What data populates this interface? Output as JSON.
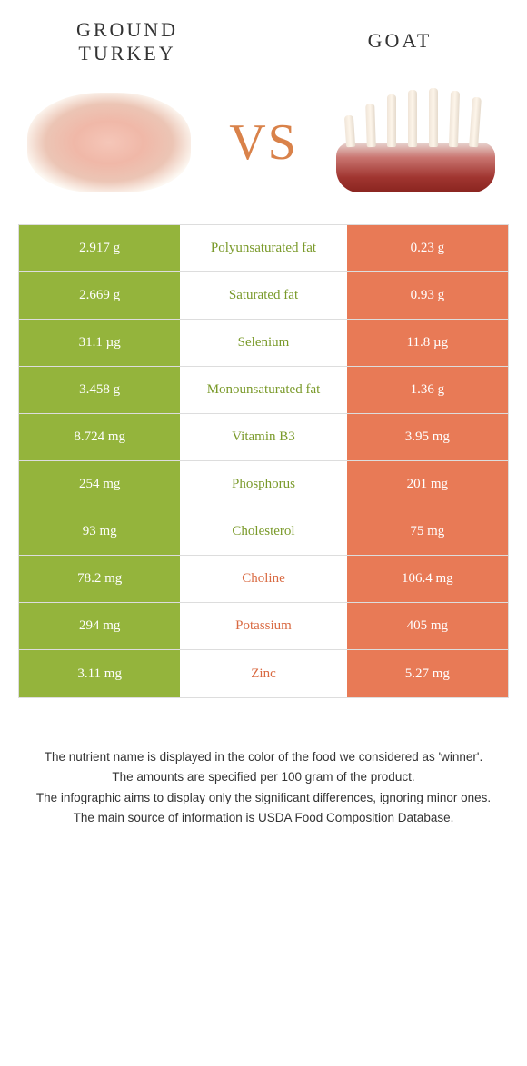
{
  "colors": {
    "left": "#94b43c",
    "right": "#e87a56",
    "left_text": "#7a9a2a",
    "right_text": "#d96a42"
  },
  "food_left": "GROUND TURKEY",
  "food_right": "GOAT",
  "vs": "VS",
  "rows": [
    {
      "left": "2.917 g",
      "label": "Polyunsaturated fat",
      "right": "0.23 g",
      "winner": "left"
    },
    {
      "left": "2.669 g",
      "label": "Saturated fat",
      "right": "0.93 g",
      "winner": "left"
    },
    {
      "left": "31.1 µg",
      "label": "Selenium",
      "right": "11.8 µg",
      "winner": "left"
    },
    {
      "left": "3.458 g",
      "label": "Monounsaturated fat",
      "right": "1.36 g",
      "winner": "left"
    },
    {
      "left": "8.724 mg",
      "label": "Vitamin B3",
      "right": "3.95 mg",
      "winner": "left"
    },
    {
      "left": "254 mg",
      "label": "Phosphorus",
      "right": "201 mg",
      "winner": "left"
    },
    {
      "left": "93 mg",
      "label": "Cholesterol",
      "right": "75 mg",
      "winner": "left"
    },
    {
      "left": "78.2 mg",
      "label": "Choline",
      "right": "106.4 mg",
      "winner": "right"
    },
    {
      "left": "294 mg",
      "label": "Potassium",
      "right": "405 mg",
      "winner": "right"
    },
    {
      "left": "3.11 mg",
      "label": "Zinc",
      "right": "5.27 mg",
      "winner": "right"
    }
  ],
  "footer": [
    "The nutrient name is displayed in the color of the food we considered as 'winner'.",
    "The amounts are specified per 100 gram of the product.",
    "The infographic aims to display only the significant differences, ignoring minor ones.",
    "The main source of information is USDA Food Composition Database."
  ]
}
